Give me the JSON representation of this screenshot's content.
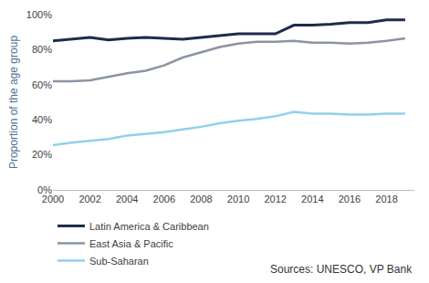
{
  "chart_data": {
    "type": "line",
    "y_label": "Proportion of the age group",
    "annotations": [
      "Sources: UNESCO, VP Bank"
    ],
    "x": [
      2000,
      2001,
      2002,
      2003,
      2004,
      2005,
      2006,
      2007,
      2008,
      2009,
      2010,
      2011,
      2012,
      2013,
      2014,
      2015,
      2016,
      2017,
      2018,
      2019
    ],
    "series": [
      {
        "name": "Latin America & Caribbean",
        "color": "#1c2d4a",
        "values": [
          85,
          86,
          87,
          85.5,
          86.5,
          87,
          86.5,
          86,
          87,
          88,
          89,
          89,
          89,
          94,
          94,
          94.5,
          95.5,
          95.5,
          97,
          97
        ]
      },
      {
        "name": "East Asia & Pacific",
        "color": "#8a94a3",
        "values": [
          62,
          62,
          62.5,
          64.5,
          66.5,
          68,
          71,
          75.5,
          78.5,
          81.5,
          83.5,
          84.5,
          84.5,
          85,
          84,
          84,
          83.5,
          84,
          85,
          86.5
        ]
      },
      {
        "name": "Sub-Saharan",
        "color": "#92d0ec",
        "values": [
          25.5,
          27,
          28,
          29,
          31,
          32,
          33,
          34.5,
          36,
          38,
          39.5,
          40.5,
          42,
          44.5,
          43.5,
          43.5,
          43,
          43,
          43.5,
          43.5
        ]
      }
    ],
    "xlim": [
      2000,
      2019.5
    ],
    "xticks": [
      2000,
      2002,
      2004,
      2006,
      2008,
      2010,
      2012,
      2014,
      2016,
      2018
    ],
    "ylim": [
      0,
      100
    ],
    "yticks": [
      {
        "value": 0,
        "label": "0%"
      },
      {
        "value": 20,
        "label": "20%"
      },
      {
        "value": 40,
        "label": "40%"
      },
      {
        "value": 60,
        "label": "60%"
      },
      {
        "value": 80,
        "label": "80%"
      },
      {
        "value": 100,
        "label": "100%"
      }
    ],
    "grid": false,
    "legend": "bottom"
  }
}
